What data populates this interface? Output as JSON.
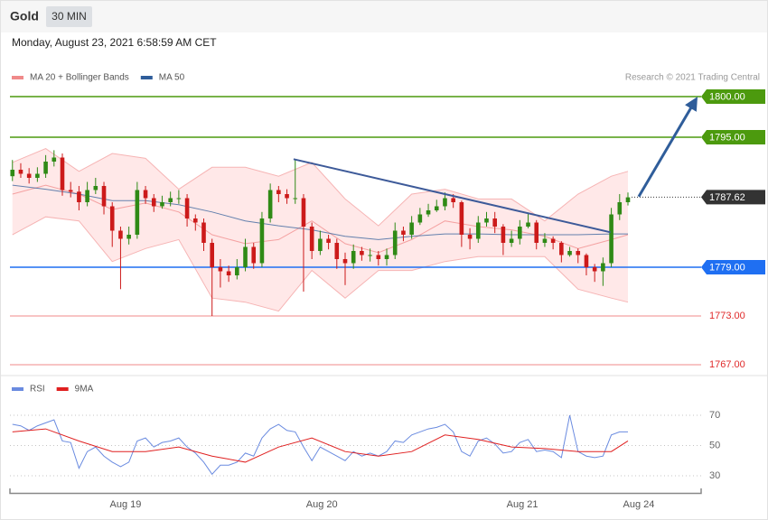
{
  "header": {
    "title": "Gold",
    "timeframe": "30 MIN",
    "timestamp": "Monday, August 23, 2021 6:58:59 AM CET",
    "credit": "Research © 2021 Trading Central"
  },
  "chart_data": [
    {
      "type": "candlestick",
      "up_color": "#2f8a16",
      "down_color": "#cc1a1a",
      "xlim": [
        -0.3,
        82.8
      ],
      "ylim": [
        1766,
        1801
      ],
      "x": [
        0,
        1,
        2,
        3,
        4,
        5,
        6,
        7,
        8,
        9,
        10,
        11,
        12,
        13,
        14,
        15,
        16,
        17,
        18,
        19,
        20,
        21,
        22,
        23,
        24,
        25,
        26,
        27,
        28,
        29,
        30,
        31,
        32,
        33,
        34,
        35,
        36,
        37,
        38,
        39,
        40,
        41,
        42,
        43,
        44,
        45,
        46,
        47,
        48,
        49,
        50,
        51,
        52,
        53,
        54,
        55,
        56,
        57,
        58,
        59,
        60,
        61,
        62,
        63,
        64,
        65,
        66,
        67,
        68,
        69,
        70,
        71,
        72,
        73,
        74
      ],
      "open": [
        1790.2,
        1791.0,
        1790.5,
        1790.0,
        1790.5,
        1792.0,
        1792.5,
        1788.5,
        1788.3,
        1787.0,
        1788.5,
        1789.0,
        1786.5,
        1783.5,
        1782.5,
        1783.0,
        1788.5,
        1787.5,
        1786.5,
        1787.0,
        1787.5,
        1787.5,
        1785.0,
        1784.5,
        1782.0,
        1779.0,
        1778.5,
        1778.0,
        1779.0,
        1781.5,
        1779.5,
        1785.0,
        1788.5,
        1788.0,
        1787.5,
        1787.5,
        1784.0,
        1781.0,
        1782.5,
        1782.0,
        1780.0,
        1779.5,
        1781.0,
        1780.5,
        1780.5,
        1780.0,
        1780.5,
        1783.5,
        1783.0,
        1784.5,
        1785.5,
        1786.0,
        1786.5,
        1787.5,
        1787.0,
        1783.0,
        1782.5,
        1784.5,
        1785.0,
        1784.0,
        1782.0,
        1782.5,
        1784.0,
        1784.5,
        1782.0,
        1782.5,
        1782.0,
        1780.5,
        1781.0,
        1780.5,
        1779.0,
        1778.5,
        1779.5,
        1785.5,
        1787.0
      ],
      "high": [
        1792.2,
        1791.8,
        1791.2,
        1791.3,
        1792.8,
        1793.4,
        1793.0,
        1789.5,
        1789.0,
        1789.5,
        1790.0,
        1789.5,
        1787.0,
        1784.0,
        1784.0,
        1789.5,
        1789.0,
        1788.0,
        1787.8,
        1788.3,
        1788.5,
        1788.0,
        1785.5,
        1785.0,
        1782.5,
        1780.0,
        1779.2,
        1780.0,
        1782.5,
        1782.0,
        1785.8,
        1789.3,
        1789.0,
        1788.6,
        1792.3,
        1788.0,
        1784.5,
        1783.5,
        1783.0,
        1782.5,
        1780.8,
        1781.8,
        1781.5,
        1781.3,
        1781.0,
        1781.3,
        1784.5,
        1784.0,
        1785.3,
        1786.3,
        1786.8,
        1787.3,
        1788.2,
        1788.0,
        1787.2,
        1783.8,
        1785.3,
        1785.8,
        1785.8,
        1784.3,
        1783.5,
        1784.8,
        1785.6,
        1784.8,
        1783.2,
        1782.8,
        1782.2,
        1781.5,
        1781.3,
        1780.7,
        1779.4,
        1780.2,
        1786.3,
        1788.0,
        1788.2
      ],
      "low": [
        1789.6,
        1790.0,
        1789.3,
        1789.5,
        1790.0,
        1791.4,
        1787.8,
        1787.6,
        1786.0,
        1786.5,
        1788.0,
        1785.5,
        1781.5,
        1776.3,
        1781.8,
        1782.5,
        1786.8,
        1785.8,
        1786.2,
        1786.5,
        1786.8,
        1784.0,
        1783.5,
        1781.0,
        1773.0,
        1776.5,
        1777.2,
        1777.5,
        1778.5,
        1778.8,
        1779.0,
        1784.5,
        1787.0,
        1786.8,
        1786.8,
        1776.0,
        1780.0,
        1780.5,
        1781.2,
        1778.8,
        1776.8,
        1778.8,
        1779.8,
        1779.7,
        1779.2,
        1779.2,
        1780.0,
        1782.2,
        1782.5,
        1784.2,
        1785.2,
        1785.8,
        1786.0,
        1786.3,
        1781.5,
        1781.2,
        1782.0,
        1784.0,
        1783.2,
        1780.5,
        1781.5,
        1781.8,
        1783.8,
        1781.2,
        1781.5,
        1781.2,
        1779.6,
        1780.3,
        1779.5,
        1778.0,
        1777.2,
        1776.7,
        1779.0,
        1784.8,
        1786.6
      ],
      "close": [
        1791.0,
        1790.5,
        1790.0,
        1790.5,
        1792.0,
        1792.5,
        1788.5,
        1788.3,
        1787.0,
        1788.5,
        1789.0,
        1786.5,
        1783.5,
        1782.5,
        1783.0,
        1788.5,
        1787.5,
        1786.5,
        1787.0,
        1787.5,
        1787.5,
        1785.0,
        1784.5,
        1782.0,
        1779.0,
        1778.5,
        1778.0,
        1779.0,
        1781.5,
        1779.5,
        1785.0,
        1788.5,
        1788.0,
        1787.5,
        1787.5,
        1784.0,
        1781.0,
        1782.5,
        1782.0,
        1780.0,
        1779.5,
        1781.0,
        1780.5,
        1780.5,
        1780.0,
        1780.5,
        1783.5,
        1783.0,
        1784.5,
        1785.5,
        1786.0,
        1786.5,
        1787.5,
        1787.0,
        1783.0,
        1782.5,
        1784.5,
        1785.0,
        1784.0,
        1782.0,
        1782.5,
        1784.0,
        1784.5,
        1782.0,
        1782.5,
        1782.0,
        1780.5,
        1781.0,
        1780.5,
        1779.0,
        1778.5,
        1779.5,
        1785.5,
        1787.0,
        1787.6
      ],
      "bollinger": {
        "color": "#ffdede",
        "edge_color": "#f6b4b4",
        "x": [
          0,
          4,
          8,
          12,
          16,
          20,
          24,
          28,
          32,
          36,
          40,
          44,
          48,
          52,
          56,
          60,
          64,
          68,
          72,
          74
        ],
        "upper": [
          1791.9,
          1793.6,
          1790.8,
          1793,
          1792.4,
          1788.6,
          1791.3,
          1791.3,
          1790.2,
          1791.9,
          1787.4,
          1784.1,
          1788,
          1788.6,
          1787.4,
          1787.4,
          1784.7,
          1788,
          1790.2,
          1790.8
        ],
        "lower": [
          1783,
          1785.2,
          1784.7,
          1779.7,
          1781.3,
          1782.4,
          1775.2,
          1774.7,
          1773.6,
          1778.6,
          1775.2,
          1778.6,
          1778.6,
          1779.7,
          1780.3,
          1780.3,
          1780.3,
          1776.3,
          1775.2,
          1774.7
        ]
      },
      "series": [
        {
          "name": "MA 20 + Bollinger Bands",
          "color": "#f08a8a",
          "x": [
            0,
            4,
            8,
            12,
            16,
            20,
            24,
            28,
            32,
            36,
            40,
            44,
            48,
            52,
            56,
            60,
            64,
            68,
            72,
            74
          ],
          "values": [
            1788,
            1789.1,
            1788,
            1786.1,
            1786.9,
            1785.8,
            1783,
            1781.9,
            1782.4,
            1784.7,
            1781.9,
            1780.8,
            1782.4,
            1784.7,
            1784,
            1783.6,
            1782.8,
            1781.3,
            1782.4,
            1783
          ]
        },
        {
          "name": "MA 50",
          "color": "#2f5d9a",
          "x": [
            0,
            4,
            8,
            12,
            16,
            20,
            24,
            28,
            32,
            36,
            40,
            44,
            48,
            52,
            56,
            60,
            64,
            68,
            72,
            74
          ],
          "values": [
            1789.1,
            1788.6,
            1788,
            1787.2,
            1787.2,
            1786.7,
            1785.8,
            1784.7,
            1784.1,
            1783.6,
            1782.8,
            1782.4,
            1782.8,
            1783.1,
            1783.1,
            1783,
            1783,
            1783,
            1783.1,
            1783.1
          ]
        }
      ],
      "levels": [
        {
          "value": 1800,
          "label": "1800.00",
          "color": "#4c9a0e",
          "style": "box"
        },
        {
          "value": 1795,
          "label": "1795.00",
          "color": "#4c9a0e",
          "style": "box"
        },
        {
          "value": 1787.62,
          "label": "1787.62",
          "color": "#333333",
          "style": "current"
        },
        {
          "value": 1779,
          "label": "1779.00",
          "color": "#1f6ff2",
          "style": "box"
        },
        {
          "value": 1773,
          "label": "1773.00",
          "color": "#e02a2a",
          "style": "text"
        },
        {
          "value": 1767,
          "label": "1767.00",
          "color": "#e02a2a",
          "style": "text"
        }
      ],
      "trendlines": [
        {
          "x": [
            33.8,
            71.9
          ],
          "y": [
            1792.3,
            1783.3
          ],
          "color": "#3d5a99",
          "arrow": false
        },
        {
          "x": [
            75.3,
            82.2
          ],
          "y": [
            1787.7,
            1799.7
          ],
          "color": "#2f5d9a",
          "arrow": true
        }
      ]
    },
    {
      "type": "line",
      "xlim": [
        -0.3,
        82.8
      ],
      "ylim": [
        20,
        80
      ],
      "yticks": [
        30,
        50,
        70
      ],
      "grid": true,
      "xticks": [
        {
          "value": 13.6,
          "label": "Aug 19"
        },
        {
          "value": 37.2,
          "label": "Aug 20"
        },
        {
          "value": 61.3,
          "label": "Aug 21"
        },
        {
          "value": 75.3,
          "label": "Aug 24"
        }
      ],
      "series": [
        {
          "name": "RSI",
          "color": "#6a8be0",
          "x": [
            0,
            1,
            2,
            3,
            4,
            5,
            6,
            7,
            8,
            9,
            10,
            11,
            12,
            13,
            14,
            15,
            16,
            17,
            18,
            19,
            20,
            21,
            22,
            23,
            24,
            25,
            26,
            27,
            28,
            29,
            30,
            31,
            32,
            33,
            34,
            35,
            36,
            37,
            38,
            39,
            40,
            41,
            42,
            43,
            44,
            45,
            46,
            47,
            48,
            49,
            50,
            51,
            52,
            53,
            54,
            55,
            56,
            57,
            58,
            59,
            60,
            61,
            62,
            63,
            64,
            65,
            66,
            67,
            68,
            69,
            70,
            71,
            72,
            73,
            74
          ],
          "values": [
            64,
            63,
            60,
            63,
            65,
            67,
            53,
            52,
            35,
            46,
            49,
            43,
            39,
            36,
            39,
            53,
            55,
            49,
            52,
            53,
            55,
            49,
            45,
            39,
            31,
            37,
            37,
            39,
            45,
            43,
            55,
            61,
            64,
            60,
            59,
            49,
            40,
            49,
            46,
            43,
            40,
            46,
            43,
            45,
            43,
            46,
            53,
            52,
            57,
            59,
            61,
            62,
            64,
            59,
            46,
            43,
            53,
            55,
            51,
            45,
            46,
            52,
            54,
            46,
            47,
            46,
            42,
            70,
            46,
            43,
            42,
            43,
            57,
            59,
            59
          ]
        },
        {
          "name": "9MA",
          "color": "#e02020",
          "x": [
            0,
            4,
            8,
            12,
            16,
            20,
            24,
            28,
            32,
            36,
            40,
            44,
            48,
            52,
            56,
            60,
            64,
            68,
            72,
            74
          ],
          "values": [
            59,
            61,
            53,
            46,
            46,
            49,
            43,
            39,
            49,
            55,
            46,
            43,
            46,
            57,
            54,
            49,
            48,
            46,
            46,
            53
          ]
        }
      ]
    }
  ]
}
